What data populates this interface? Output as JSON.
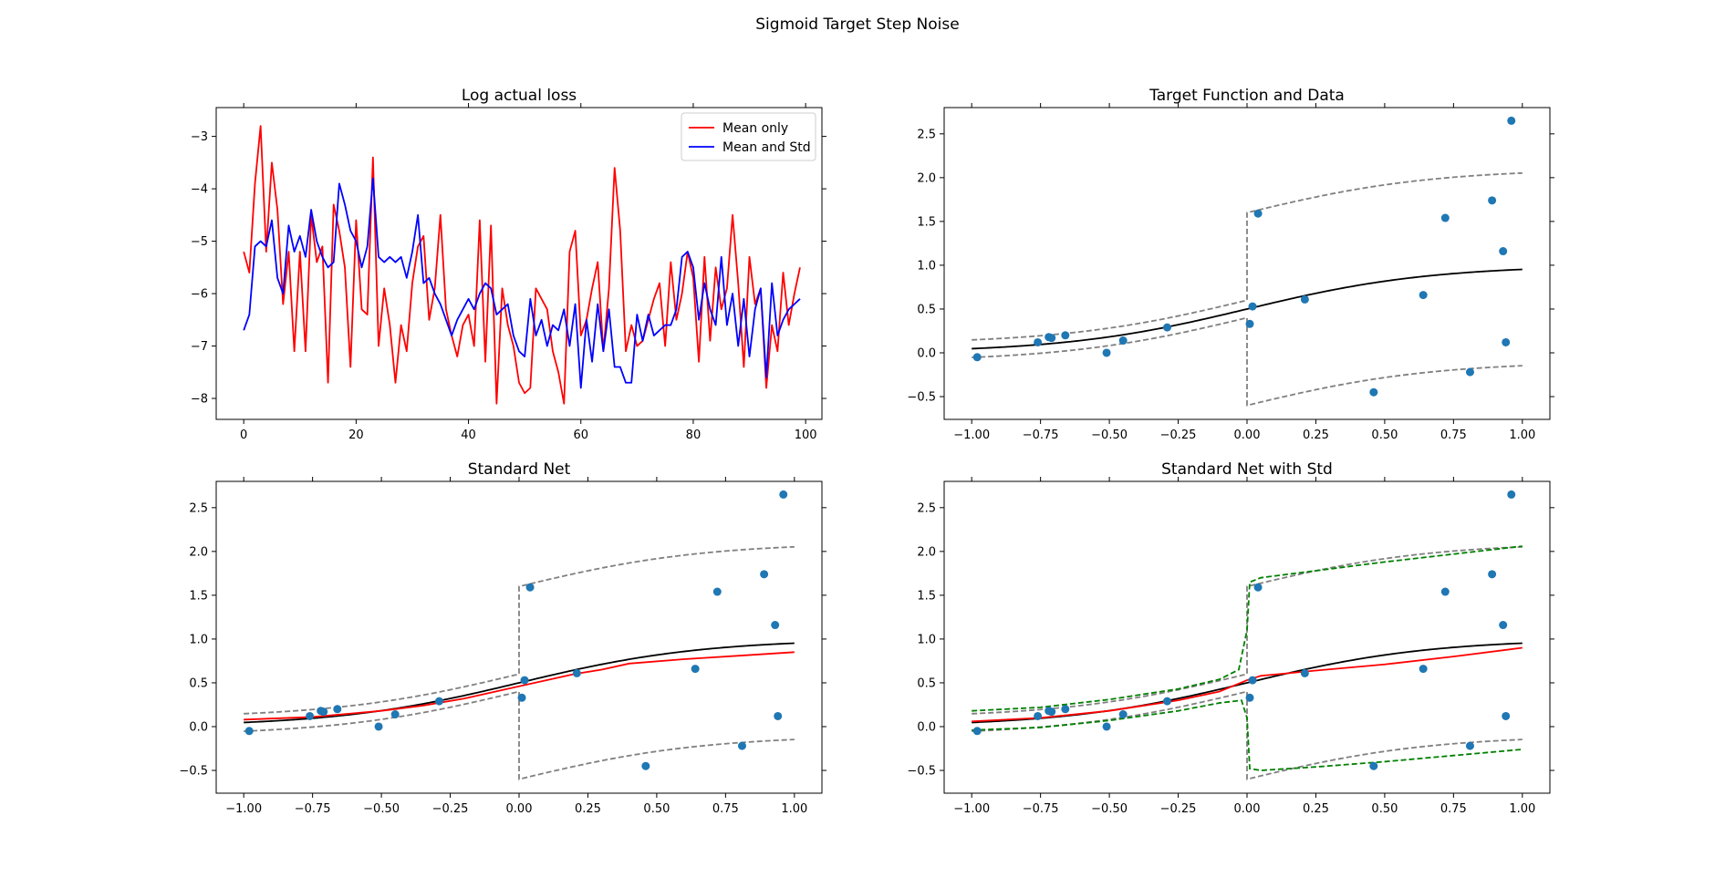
{
  "figure": {
    "suptitle": "Sigmoid Target Step Noise",
    "colors": {
      "mean_only": "#ff0000",
      "mean_and_std": "#0000ff",
      "target": "#000000",
      "bounds": "#808080",
      "points": "#1f77b4",
      "std_bounds": "#008000"
    }
  },
  "chart_data": [
    {
      "type": "line",
      "title": "Log actual loss",
      "xlim": [
        -4.9,
        102.9
      ],
      "ylim": [
        -8.4,
        -2.45
      ],
      "xticks": [
        0,
        20,
        40,
        60,
        80,
        100
      ],
      "yticks": [
        -8,
        -7,
        -6,
        -5,
        -4,
        -3
      ],
      "legend": {
        "position": "top-right",
        "entries": [
          "Mean only",
          "Mean and Std"
        ]
      },
      "series": [
        {
          "name": "Mean only",
          "color": "#ff0000",
          "values": [
            -5.2,
            -5.6,
            -3.9,
            -2.8,
            -5.2,
            -3.5,
            -4.4,
            -6.2,
            -5.2,
            -7.1,
            -5.2,
            -7.1,
            -4.5,
            -5.4,
            -5.1,
            -7.7,
            -4.3,
            -4.8,
            -5.5,
            -7.4,
            -4.6,
            -6.3,
            -6.4,
            -3.4,
            -7.0,
            -5.9,
            -6.6,
            -7.7,
            -6.6,
            -7.1,
            -5.8,
            -5.1,
            -4.9,
            -6.5,
            -5.9,
            -4.5,
            -6.3,
            -6.8,
            -7.2,
            -6.6,
            -6.4,
            -7.0,
            -4.6,
            -7.3,
            -4.7,
            -8.1,
            -5.9,
            -6.6,
            -7.0,
            -7.7,
            -7.9,
            -7.8,
            -5.9,
            -6.1,
            -6.3,
            -7.1,
            -7.5,
            -8.1,
            -5.2,
            -4.8,
            -6.8,
            -6.5,
            -5.9,
            -5.4,
            -7.1,
            -5.9,
            -3.6,
            -4.8,
            -7.1,
            -6.6,
            -7.0,
            -6.9,
            -6.5,
            -6.1,
            -5.8,
            -7.0,
            -5.4,
            -6.5,
            -6.0,
            -5.2,
            -5.7,
            -7.3,
            -5.3,
            -6.9,
            -5.5,
            -6.3,
            -5.9,
            -4.5,
            -5.8,
            -7.4,
            -5.3,
            -6.2,
            -5.9,
            -7.8,
            -6.6,
            -7.1,
            -5.6,
            -6.6,
            -6.0,
            -5.5
          ]
        },
        {
          "name": "Mean and Std",
          "color": "#0000ff",
          "values": [
            -6.7,
            -6.4,
            -5.1,
            -5.0,
            -5.1,
            -4.6,
            -5.7,
            -6.0,
            -4.7,
            -5.2,
            -4.9,
            -5.3,
            -4.4,
            -5.0,
            -5.3,
            -5.5,
            -5.4,
            -3.9,
            -4.3,
            -4.8,
            -5.0,
            -5.5,
            -5.1,
            -3.8,
            -5.3,
            -5.4,
            -5.3,
            -5.4,
            -5.3,
            -5.7,
            -5.2,
            -4.5,
            -5.8,
            -5.7,
            -6.0,
            -6.2,
            -6.5,
            -6.8,
            -6.5,
            -6.3,
            -6.1,
            -6.3,
            -6.0,
            -5.8,
            -5.9,
            -6.4,
            -6.3,
            -6.2,
            -6.8,
            -7.1,
            -7.2,
            -6.1,
            -6.8,
            -6.5,
            -7.0,
            -6.6,
            -6.7,
            -6.3,
            -7.0,
            -6.2,
            -7.8,
            -6.5,
            -7.3,
            -6.2,
            -7.1,
            -6.3,
            -7.4,
            -7.4,
            -7.7,
            -7.7,
            -6.4,
            -6.9,
            -6.4,
            -6.8,
            -6.7,
            -6.6,
            -6.6,
            -6.3,
            -5.3,
            -5.2,
            -5.5,
            -6.5,
            -5.8,
            -6.3,
            -6.6,
            -5.3,
            -6.6,
            -6.0,
            -7.0,
            -6.1,
            -7.2,
            -6.3,
            -5.9,
            -7.6,
            -5.8,
            -6.8,
            -6.5,
            -6.3,
            -6.2,
            -6.1
          ]
        }
      ]
    },
    {
      "type": "scatter",
      "title": "Target Function and Data",
      "xlim": [
        -1.1,
        1.1
      ],
      "ylim": [
        -0.76,
        2.8
      ],
      "xticks": [
        -1.0,
        -0.75,
        -0.5,
        -0.25,
        0.0,
        0.25,
        0.5,
        0.75,
        1.0
      ],
      "yticks": [
        -0.5,
        0.0,
        0.5,
        1.0,
        1.5,
        2.0,
        2.5
      ],
      "points": {
        "x": [
          -0.98,
          -0.76,
          -0.72,
          -0.71,
          -0.66,
          -0.51,
          -0.45,
          -0.29,
          0.01,
          0.02,
          0.04,
          0.21,
          0.46,
          0.64,
          0.72,
          0.81,
          0.89,
          0.93,
          0.94,
          0.96
        ],
        "y": [
          -0.05,
          0.12,
          0.18,
          0.17,
          0.2,
          0.0,
          0.14,
          0.29,
          0.33,
          0.53,
          1.59,
          0.61,
          -0.45,
          0.66,
          1.54,
          -0.22,
          1.74,
          1.16,
          0.12,
          2.65
        ]
      },
      "curves": [
        "target",
        "bounds"
      ]
    },
    {
      "type": "scatter",
      "title": "Standard Net",
      "xlim": [
        -1.1,
        1.1
      ],
      "ylim": [
        -0.76,
        2.8
      ],
      "xticks": [
        -1.0,
        -0.75,
        -0.5,
        -0.25,
        0.0,
        0.25,
        0.5,
        0.75,
        1.0
      ],
      "yticks": [
        -0.5,
        0.0,
        0.5,
        1.0,
        1.5,
        2.0,
        2.5
      ],
      "points": {
        "x": [
          -0.98,
          -0.76,
          -0.72,
          -0.71,
          -0.66,
          -0.51,
          -0.45,
          -0.29,
          0.01,
          0.02,
          0.04,
          0.21,
          0.46,
          0.64,
          0.72,
          0.81,
          0.89,
          0.93,
          0.94,
          0.96
        ],
        "y": [
          -0.05,
          0.12,
          0.18,
          0.17,
          0.2,
          0.0,
          0.14,
          0.29,
          0.33,
          0.53,
          1.59,
          0.61,
          -0.45,
          0.66,
          1.54,
          -0.22,
          1.74,
          1.16,
          0.12,
          2.65
        ]
      },
      "curves": [
        "target",
        "bounds",
        "prediction"
      ],
      "prediction": {
        "x": [
          -1.0,
          -0.75,
          -0.5,
          -0.35,
          -0.2,
          0.0,
          0.2,
          0.3,
          0.4,
          0.6,
          0.8,
          1.0
        ],
        "y": [
          0.08,
          0.11,
          0.18,
          0.24,
          0.32,
          0.46,
          0.6,
          0.65,
          0.72,
          0.77,
          0.81,
          0.85
        ]
      }
    },
    {
      "type": "scatter",
      "title": "Standard Net with Std",
      "xlim": [
        -1.1,
        1.1
      ],
      "ylim": [
        -0.76,
        2.8
      ],
      "xticks": [
        -1.0,
        -0.75,
        -0.5,
        -0.25,
        0.0,
        0.25,
        0.5,
        0.75,
        1.0
      ],
      "yticks": [
        -0.5,
        0.0,
        0.5,
        1.0,
        1.5,
        2.0,
        2.5
      ],
      "points": {
        "x": [
          -0.98,
          -0.76,
          -0.72,
          -0.71,
          -0.66,
          -0.51,
          -0.45,
          -0.29,
          0.01,
          0.02,
          0.04,
          0.21,
          0.46,
          0.64,
          0.72,
          0.81,
          0.89,
          0.93,
          0.94,
          0.96
        ],
        "y": [
          -0.05,
          0.12,
          0.18,
          0.17,
          0.2,
          0.0,
          0.14,
          0.29,
          0.33,
          0.53,
          1.59,
          0.61,
          -0.45,
          0.66,
          1.54,
          -0.22,
          1.74,
          1.16,
          0.12,
          2.65
        ]
      },
      "curves": [
        "target",
        "bounds",
        "prediction",
        "std_bounds"
      ],
      "prediction": {
        "x": [
          -1.0,
          -0.75,
          -0.5,
          -0.25,
          -0.1,
          0.0,
          0.05,
          0.25,
          0.5,
          0.75,
          1.0
        ],
        "y": [
          0.06,
          0.1,
          0.18,
          0.3,
          0.4,
          0.53,
          0.58,
          0.64,
          0.71,
          0.8,
          0.9
        ]
      },
      "std_upper": {
        "x": [
          -1.0,
          -0.75,
          -0.5,
          -0.25,
          -0.1,
          -0.03,
          0.0,
          0.01,
          0.05,
          0.25,
          0.5,
          0.75,
          1.0
        ],
        "y": [
          0.18,
          0.22,
          0.31,
          0.43,
          0.54,
          0.65,
          1.1,
          1.65,
          1.7,
          1.78,
          1.88,
          1.97,
          2.06
        ]
      },
      "std_lower": {
        "x": [
          -1.0,
          -0.75,
          -0.5,
          -0.25,
          -0.1,
          -0.02,
          0.0,
          0.01,
          0.05,
          0.25,
          0.5,
          0.75,
          1.0
        ],
        "y": [
          -0.04,
          -0.01,
          0.07,
          0.18,
          0.27,
          0.3,
          0.1,
          -0.48,
          -0.5,
          -0.46,
          -0.4,
          -0.33,
          -0.26
        ]
      }
    }
  ]
}
